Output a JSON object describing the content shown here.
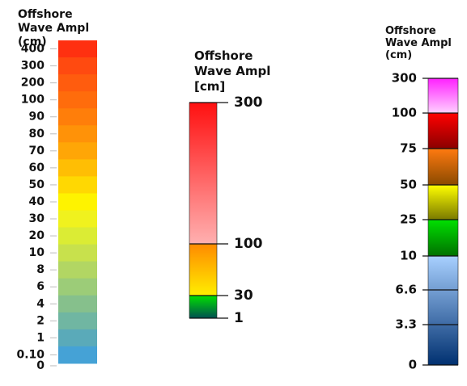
{
  "legends": [
    {
      "id": "legend-a",
      "title": [
        "Offshore",
        "Wave Ampl",
        "(cm)"
      ],
      "ticks": [
        {
          "label": "400",
          "color": "#ff3010"
        },
        {
          "label": "300",
          "color": "#ff4a10"
        },
        {
          "label": "200",
          "color": "#ff5c0e"
        },
        {
          "label": "100",
          "color": "#ff6c0c"
        },
        {
          "label": "90",
          "color": "#ff7e0a"
        },
        {
          "label": "80",
          "color": "#ff9208"
        },
        {
          "label": "70",
          "color": "#ffa606"
        },
        {
          "label": "60",
          "color": "#ffbe04"
        },
        {
          "label": "50",
          "color": "#ffd802"
        },
        {
          "label": "40",
          "color": "#fef300"
        },
        {
          "label": "30",
          "color": "#f0f21e"
        },
        {
          "label": "20",
          "color": "#dbec34"
        },
        {
          "label": "10",
          "color": "#c8e14c"
        },
        {
          "label": "8",
          "color": "#b2d663"
        },
        {
          "label": "6",
          "color": "#9ccc78"
        },
        {
          "label": "4",
          "color": "#86c08c"
        },
        {
          "label": "2",
          "color": "#70b6a2"
        },
        {
          "label": "1",
          "color": "#5aaab9"
        },
        {
          "label": "0.10",
          "color": "#45a2d6"
        },
        {
          "label": "0",
          "color": null
        }
      ]
    },
    {
      "id": "legend-b",
      "title": [
        "Offshore",
        "Wave Ampl",
        "[cm]"
      ],
      "ticks": [
        {
          "label": "300"
        },
        {
          "label": "100"
        },
        {
          "label": "30"
        },
        {
          "label": "1"
        }
      ],
      "segments": [
        {
          "from": "300",
          "to": "100",
          "gradient": [
            "#ff1010",
            "#ffb0b0"
          ]
        },
        {
          "from": "100",
          "to": "30",
          "gradient": [
            "#ff8a00",
            "#ffee00"
          ]
        },
        {
          "from": "30",
          "to": "1",
          "gradient": [
            "#00e000",
            "#005050"
          ]
        }
      ]
    },
    {
      "id": "legend-c",
      "title": [
        "Offshore",
        "Wave Ampl",
        "(cm)"
      ],
      "ticks": [
        {
          "label": "300"
        },
        {
          "label": "100"
        },
        {
          "label": "75"
        },
        {
          "label": "50"
        },
        {
          "label": "25"
        },
        {
          "label": "10"
        },
        {
          "label": "6.6"
        },
        {
          "label": "3.3"
        },
        {
          "label": "0"
        }
      ],
      "segments": [
        {
          "from": "300",
          "to": "100",
          "gradient": [
            "#ff20ff",
            "#ffd0ff"
          ]
        },
        {
          "from": "100",
          "to": "75",
          "gradient": [
            "#ff0000",
            "#8a0000"
          ]
        },
        {
          "from": "75",
          "to": "50",
          "gradient": [
            "#ff7a10",
            "#8a4a00"
          ]
        },
        {
          "from": "50",
          "to": "25",
          "gradient": [
            "#ffff00",
            "#7a7a00"
          ]
        },
        {
          "from": "25",
          "to": "10",
          "gradient": [
            "#00e000",
            "#007000"
          ]
        },
        {
          "from": "10",
          "to": "0",
          "gradient": [
            "#a8d0ff",
            "#003070"
          ]
        }
      ]
    }
  ]
}
